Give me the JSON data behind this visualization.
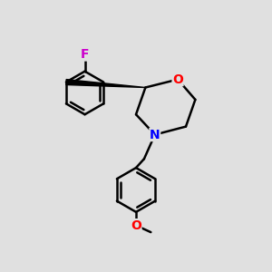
{
  "bg_color": "#e0e0e0",
  "bond_color": "#000000",
  "bond_width": 1.8,
  "O_color": "#ff0000",
  "N_color": "#0000ff",
  "F_color": "#cc00cc",
  "figsize": [
    3.0,
    3.0
  ],
  "dpi": 100,
  "xlim": [
    0,
    10
  ],
  "ylim": [
    0,
    10
  ]
}
